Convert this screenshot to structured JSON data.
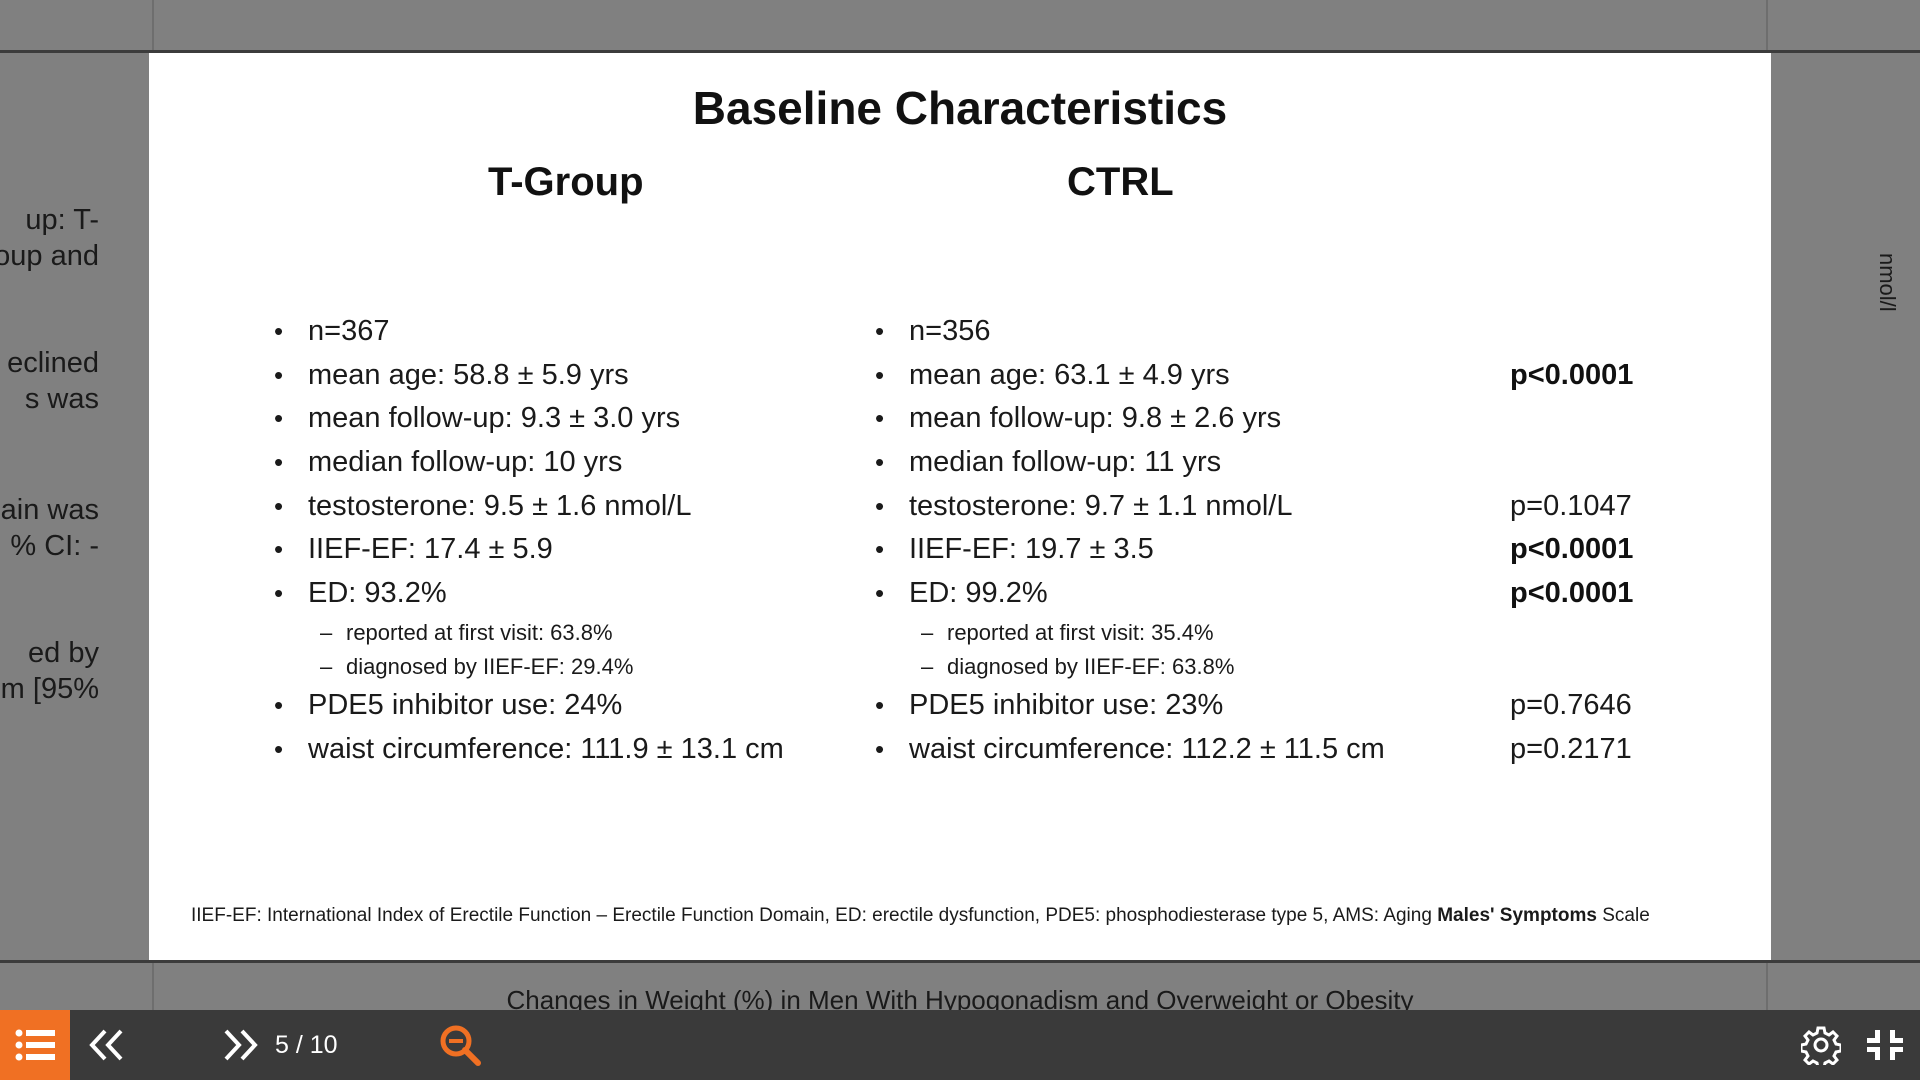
{
  "background": {
    "left_fragments": [
      "up: T-",
      "oup and",
      "eclined",
      "s was",
      "ain was",
      "% CI: -",
      "ed by",
      "m [95%"
    ],
    "right_fragment": "nmol/l",
    "next_slide_title": "Changes in Weight (%) in Men With Hypogonadism and Overweight or Obesity"
  },
  "slide": {
    "title": "Baseline Characteristics",
    "t_group": {
      "header": "T-Group",
      "items": [
        {
          "text": "n=367",
          "sub": []
        },
        {
          "text": "mean age: 58.8 ± 5.9 yrs",
          "sub": []
        },
        {
          "text": "mean follow-up: 9.3 ± 3.0 yrs",
          "sub": []
        },
        {
          "text": "median follow-up: 10 yrs",
          "sub": []
        },
        {
          "text": "testosterone: 9.5 ± 1.6 nmol/L",
          "sub": []
        },
        {
          "text": "IIEF-EF: 17.4 ± 5.9",
          "sub": []
        },
        {
          "text": "ED: 93.2%",
          "sub": [
            "reported at first visit: 63.8%",
            "diagnosed by IIEF-EF: 29.4%"
          ]
        },
        {
          "text": "PDE5 inhibitor use: 24%",
          "sub": []
        },
        {
          "text": "waist circumference: 111.9 ± 13.1 cm",
          "sub": []
        }
      ]
    },
    "ctrl": {
      "header": "CTRL",
      "items": [
        {
          "text": "n=356",
          "sub": []
        },
        {
          "text": "mean age: 63.1 ± 4.9 yrs",
          "sub": []
        },
        {
          "text": "mean follow-up: 9.8 ± 2.6 yrs",
          "sub": []
        },
        {
          "text": "median follow-up: 11 yrs",
          "sub": []
        },
        {
          "text": "testosterone: 9.7 ± 1.1 nmol/L",
          "sub": []
        },
        {
          "text": "IIEF-EF: 19.7 ± 3.5",
          "sub": []
        },
        {
          "text": "ED: 99.2%",
          "sub": [
            "reported at first visit: 35.4%",
            "diagnosed by IIEF-EF: 63.8%"
          ]
        },
        {
          "text": "PDE5 inhibitor use: 23%",
          "sub": []
        },
        {
          "text": "waist circumference: 112.2 ± 11.5 cm",
          "sub": []
        }
      ]
    },
    "p_values": [
      {
        "text": "",
        "bold": false
      },
      {
        "text": "p<0.0001",
        "bold": true
      },
      {
        "text": "",
        "bold": false
      },
      {
        "text": "",
        "bold": false
      },
      {
        "text": "p=0.1047",
        "bold": false
      },
      {
        "text": "p<0.0001",
        "bold": true
      },
      {
        "text": "p<0.0001",
        "bold": true
      },
      {
        "text": "p=0.7646",
        "bold": false
      },
      {
        "text": "p=0.2171",
        "bold": false
      }
    ],
    "footnote": {
      "text": "IIEF-EF: International Index of Erectile Function – Erectile Function Domain, ED: erectile dysfunction, PDE5: phosphodiesterase type 5, AMS: Aging ",
      "bold_part": "Males' Symptoms",
      "tail": " Scale"
    }
  },
  "toolbar": {
    "page_indicator": "5 / 10",
    "accent_color": "#f07023",
    "icons": [
      "list-icon",
      "chevrons-left-icon",
      "chevrons-right-icon",
      "zoom-out-icon",
      "gear-icon",
      "exit-fullscreen-icon"
    ]
  }
}
